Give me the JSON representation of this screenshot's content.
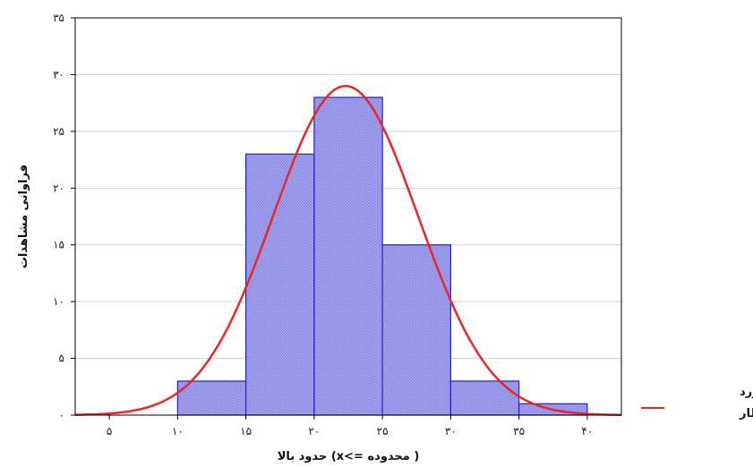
{
  "chart_data": {
    "type": "bar",
    "subtype": "histogram",
    "xlabel": "( محدوده =>x)  حدود بالا",
    "ylabel": "فراوانی مشاهدات",
    "xlim": [
      2.5,
      42.5
    ],
    "ylim": [
      0,
      35
    ],
    "x_ticks": [
      5,
      10,
      15,
      20,
      25,
      30,
      35,
      40
    ],
    "x_tick_labels": [
      "۵",
      "۱۰",
      "۱۵",
      "۲۰",
      "۲۵",
      "۳۰",
      "۳۵",
      "۴۰"
    ],
    "y_ticks": [
      0,
      5,
      10,
      15,
      20,
      25,
      30,
      35
    ],
    "y_tick_labels": [
      "۰",
      "۵",
      "۱۰",
      "۱۵",
      "۲۰",
      "۲۵",
      "۳۰",
      "۳۵"
    ],
    "grid": true,
    "bins": [
      {
        "from": 10,
        "to": 15,
        "count": 3
      },
      {
        "from": 15,
        "to": 20,
        "count": 23
      },
      {
        "from": 20,
        "to": 25,
        "count": 28
      },
      {
        "from": 25,
        "to": 30,
        "count": 15
      },
      {
        "from": 30,
        "to": 35,
        "count": 3
      },
      {
        "from": 35,
        "to": 40,
        "count": 1
      }
    ],
    "series": [
      {
        "name": "نرمال مورد انتظار",
        "type": "line",
        "mean": 22.3,
        "peak": 29,
        "sd": 5.3
      }
    ],
    "legend": {
      "position": "right",
      "lines": [
        "نرمال مورد",
        "انتظار"
      ]
    },
    "colors": {
      "bar_fill": "#9999ee",
      "bar_stroke": "#2222cc",
      "curve": "#e8262a",
      "grid": "#cfcfcf",
      "frame": "#000000"
    }
  }
}
